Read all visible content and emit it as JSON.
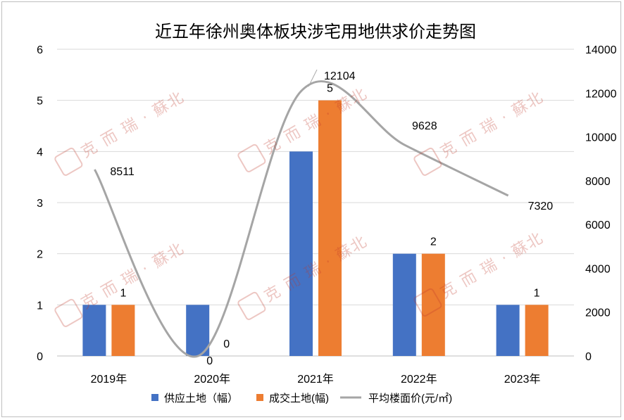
{
  "chart_data": {
    "type": "bar",
    "title": "近五年徐州奥体板块涉宅用地供求价走势图",
    "categories": [
      "2019年",
      "2020年",
      "2021年",
      "2022年",
      "2023年"
    ],
    "series": [
      {
        "name": "供应土地（幅）",
        "type": "bar",
        "axis": "left",
        "color": "#4472C4",
        "values": [
          1,
          1,
          4,
          2,
          1
        ],
        "labels": [
          "",
          "",
          "",
          "",
          ""
        ]
      },
      {
        "name": "成交土地(幅)",
        "type": "bar",
        "axis": "left",
        "color": "#ED7D31",
        "values": [
          1,
          0,
          5,
          2,
          1
        ],
        "labels": [
          "1",
          "0",
          "5",
          "2",
          "1"
        ]
      },
      {
        "name": "平均楼面价(元/㎡)",
        "type": "line",
        "smooth": true,
        "axis": "right",
        "color": "#A5A5A5",
        "values": [
          8511,
          0,
          12104,
          9628,
          7320
        ],
        "labels": [
          "8511",
          "0",
          "12104",
          "9628",
          "7320"
        ]
      }
    ],
    "y_left": {
      "min": 0,
      "max": 6,
      "ticks": [
        "0",
        "1",
        "2",
        "3",
        "4",
        "5",
        "6"
      ]
    },
    "y_right": {
      "min": 0,
      "max": 14000,
      "ticks": [
        "0",
        "2000",
        "4000",
        "6000",
        "8000",
        "10000",
        "12000",
        "14000"
      ]
    },
    "grid": true,
    "legend_position": "bottom"
  },
  "watermark": {
    "text": "克 而 瑞 · 蘇北",
    "seal": "克而瑞"
  }
}
